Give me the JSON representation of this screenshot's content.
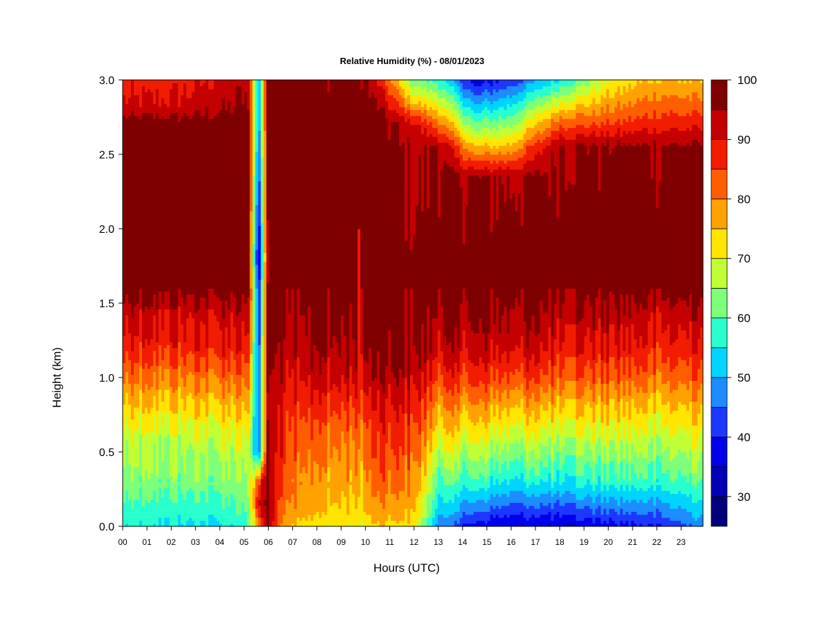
{
  "chart_data": {
    "type": "heatmap",
    "title": "Relative Humidity (%) - 08/01/2023",
    "xlabel": "Hours (UTC)",
    "ylabel": "Height (km)",
    "xlim": [
      0,
      23.9
    ],
    "ylim": [
      0,
      3.0
    ],
    "x_ticks": [
      "00",
      "01",
      "02",
      "03",
      "04",
      "05",
      "06",
      "07",
      "08",
      "09",
      "10",
      "11",
      "12",
      "13",
      "14",
      "15",
      "16",
      "17",
      "18",
      "19",
      "20",
      "21",
      "22",
      "23"
    ],
    "y_ticks": [
      "0.0",
      "0.5",
      "1.0",
      "1.5",
      "2.0",
      "2.5",
      "3.0"
    ],
    "colorbar": {
      "levels": [
        25,
        30,
        35,
        40,
        45,
        50,
        55,
        60,
        65,
        70,
        75,
        80,
        85,
        90,
        95,
        100
      ],
      "tick_labels": [
        "30",
        "40",
        "50",
        "60",
        "70",
        "80",
        "90",
        "100"
      ],
      "colors": [
        "#00007f",
        "#0000b5",
        "#0000eb",
        "#1c38ff",
        "#1c8cff",
        "#00d4ff",
        "#29ffce",
        "#7dff7a",
        "#c0ff36",
        "#ffe500",
        "#ffa100",
        "#ff5e00",
        "#f21c00",
        "#c40000",
        "#7f0000"
      ]
    },
    "profiles": [
      {
        "hour": 0,
        "heights": [
          0,
          0.1,
          0.3,
          0.6,
          0.85,
          1.0,
          1.2,
          1.45,
          1.6,
          2.7,
          2.85,
          3.0
        ],
        "rh": [
          55,
          58,
          62,
          67,
          75,
          80,
          87,
          92,
          98,
          98,
          90,
          88
        ]
      },
      {
        "hour": 2,
        "heights": [
          0,
          0.1,
          0.3,
          0.6,
          0.85,
          1.0,
          1.2,
          1.45,
          1.6,
          2.7,
          2.85,
          3.0
        ],
        "rh": [
          55,
          57,
          62,
          67,
          75,
          80,
          87,
          92,
          98,
          98,
          90,
          88
        ]
      },
      {
        "hour": 4,
        "heights": [
          0,
          0.1,
          0.3,
          0.6,
          0.85,
          1.0,
          1.2,
          1.45,
          1.6,
          2.7,
          2.85,
          3.0
        ],
        "rh": [
          54,
          57,
          62,
          68,
          76,
          81,
          88,
          92,
          98,
          98,
          93,
          91
        ]
      },
      {
        "hour": 5.15,
        "heights": [
          0,
          0.1,
          0.3,
          0.6,
          0.85,
          1.0,
          1.2,
          1.45,
          1.6,
          2.7,
          2.85,
          3.0
        ],
        "rh": [
          58,
          60,
          64,
          69,
          77,
          82,
          88,
          93,
          98,
          98,
          96,
          94
        ]
      },
      {
        "hour": 5.6,
        "heights": [
          0,
          0.15,
          0.3,
          0.5,
          1.0,
          1.5,
          1.8,
          2.2,
          2.7,
          3.0
        ],
        "rh": [
          80,
          92,
          85,
          48,
          45,
          42,
          32,
          40,
          48,
          52
        ]
      },
      {
        "hour": 6.0,
        "heights": [
          0,
          0.1,
          0.3,
          0.6,
          0.85,
          1.0,
          1.2,
          1.45,
          1.6,
          2.7,
          2.85,
          3.0
        ],
        "rh": [
          98,
          98,
          98,
          97,
          96,
          98,
          98,
          98,
          98,
          98,
          98,
          98
        ]
      },
      {
        "hour": 6.5,
        "heights": [
          0,
          0.1,
          0.3,
          0.6,
          0.85,
          1.0,
          1.2,
          1.45,
          1.6,
          2.7,
          2.85,
          3.0
        ],
        "rh": [
          78,
          82,
          85,
          88,
          90,
          92,
          95,
          97,
          98,
          98,
          98,
          98
        ]
      },
      {
        "hour": 8,
        "heights": [
          0,
          0.1,
          0.3,
          0.6,
          0.85,
          1.0,
          1.2,
          1.45,
          1.6,
          2.7,
          2.85,
          3.0
        ],
        "rh": [
          72,
          75,
          78,
          82,
          88,
          92,
          95,
          97,
          98,
          98,
          97,
          96
        ]
      },
      {
        "hour": 9.7,
        "heights": [
          0,
          0.1,
          0.3,
          0.6,
          0.85,
          1.0,
          1.2,
          1.45,
          1.6,
          2.7,
          2.85,
          3.0
        ],
        "rh": [
          70,
          73,
          76,
          80,
          86,
          91,
          94,
          97,
          98,
          98,
          98,
          98
        ]
      },
      {
        "hour": 10.5,
        "heights": [
          0,
          0.1,
          0.3,
          0.6,
          0.85,
          1.0,
          1.2,
          1.45,
          1.6,
          2.7,
          2.85,
          3.0
        ],
        "rh": [
          74,
          78,
          82,
          86,
          90,
          94,
          97,
          98,
          98,
          98,
          95,
          90
        ]
      },
      {
        "hour": 12,
        "heights": [
          0,
          0.1,
          0.3,
          0.6,
          0.85,
          1.0,
          1.2,
          1.45,
          1.6,
          2.7,
          2.85,
          3.0
        ],
        "rh": [
          72,
          76,
          80,
          85,
          90,
          93,
          97,
          98,
          98,
          92,
          75,
          62
        ]
      },
      {
        "hour": 13,
        "heights": [
          0,
          0.1,
          0.3,
          0.6,
          0.85,
          1.0,
          1.2,
          1.45,
          1.6,
          2.55,
          2.75,
          3.0
        ],
        "rh": [
          47,
          53,
          60,
          72,
          80,
          86,
          92,
          96,
          98,
          96,
          78,
          58
        ]
      },
      {
        "hour": 14.5,
        "heights": [
          0,
          0.1,
          0.3,
          0.6,
          0.85,
          1.0,
          1.2,
          1.45,
          1.6,
          2.35,
          2.6,
          3.0
        ],
        "rh": [
          37,
          45,
          58,
          70,
          80,
          86,
          92,
          96,
          98,
          95,
          70,
          36
        ]
      },
      {
        "hour": 16,
        "heights": [
          0,
          0.1,
          0.3,
          0.6,
          0.85,
          1.0,
          1.2,
          1.45,
          1.6,
          2.35,
          2.6,
          3.0
        ],
        "rh": [
          35,
          42,
          55,
          68,
          78,
          85,
          92,
          96,
          98,
          95,
          72,
          42
        ]
      },
      {
        "hour": 18,
        "heights": [
          0,
          0.1,
          0.3,
          0.6,
          0.85,
          1.0,
          1.2,
          1.45,
          1.6,
          2.55,
          2.75,
          3.0
        ],
        "rh": [
          35,
          42,
          56,
          68,
          78,
          84,
          90,
          95,
          98,
          96,
          80,
          55
        ]
      },
      {
        "hour": 20,
        "heights": [
          0,
          0.1,
          0.3,
          0.6,
          0.85,
          1.0,
          1.2,
          1.45,
          1.6,
          2.55,
          2.75,
          3.0
        ],
        "rh": [
          37,
          45,
          57,
          68,
          77,
          83,
          89,
          94,
          98,
          96,
          82,
          70
        ]
      },
      {
        "hour": 22,
        "heights": [
          0,
          0.1,
          0.3,
          0.6,
          0.85,
          1.0,
          1.2,
          1.45,
          1.6,
          2.55,
          2.75,
          3.0
        ],
        "rh": [
          40,
          46,
          58,
          68,
          76,
          82,
          88,
          93,
          98,
          96,
          86,
          76
        ]
      },
      {
        "hour": 23.9,
        "heights": [
          0,
          0.1,
          0.3,
          0.6,
          0.85,
          1.0,
          1.2,
          1.45,
          1.6,
          2.55,
          2.75,
          3.0
        ],
        "rh": [
          47,
          52,
          60,
          69,
          77,
          82,
          88,
          93,
          98,
          96,
          86,
          74
        ]
      }
    ],
    "features": [
      {
        "name": "humid-spike",
        "hour": 9.75,
        "top_km": 2.0,
        "rh": 86
      }
    ],
    "grid": false,
    "legend": "colorbar-right"
  }
}
